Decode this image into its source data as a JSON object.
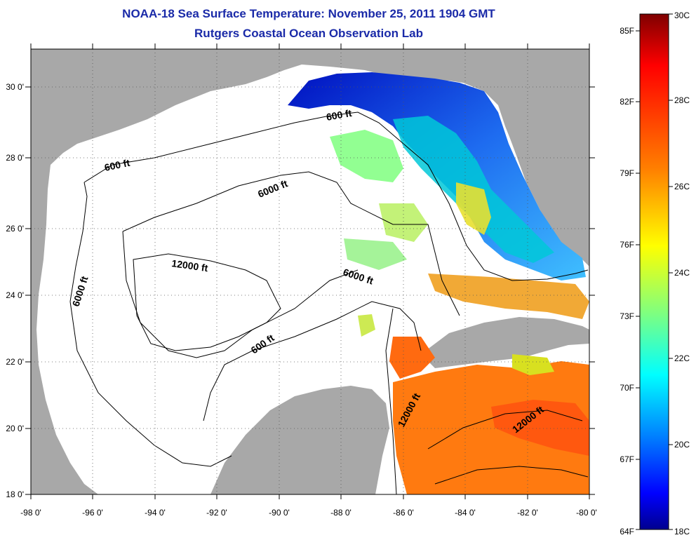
{
  "title": "NOAA-18 Sea Surface Temperature:  November 25, 2011 1904 GMT",
  "subtitle": "Rutgers Coastal Ocean Observation Lab",
  "map": {
    "lon_ticks": [
      "-98 0'",
      "-96 0'",
      "-94 0'",
      "-92 0'",
      "-90 0'",
      "-88 0'",
      "-86 0'",
      "-84 0'",
      "-82 0'",
      "-80 0'"
    ],
    "lat_ticks": [
      "18 0'",
      "20 0'",
      "22 0'",
      "24 0'",
      "26 0'",
      "28 0'",
      "30 0'"
    ],
    "lon_range": [
      -98,
      -80
    ],
    "lat_range": [
      18,
      31
    ],
    "contour_labels": [
      "600 ft",
      "600 ft",
      "600 ft",
      "6000 ft",
      "6000 ft",
      "6000 ft",
      "12000 ft",
      "12000 ft",
      "12000 ft"
    ],
    "land_color": "#a8a8a8",
    "water_nodata_color": "#ffffff"
  },
  "colorbar": {
    "f_labels": [
      "85F",
      "82F",
      "79F",
      "76F",
      "73F",
      "70F",
      "67F",
      "64F"
    ],
    "c_labels": [
      "30C",
      "28C",
      "26C",
      "24C",
      "22C",
      "20C",
      "18C"
    ],
    "colors": [
      "#7f0000",
      "#ff0000",
      "#ff7f00",
      "#ffff00",
      "#7fff7f",
      "#00ffff",
      "#007fff",
      "#0000ff",
      "#00008f"
    ]
  }
}
